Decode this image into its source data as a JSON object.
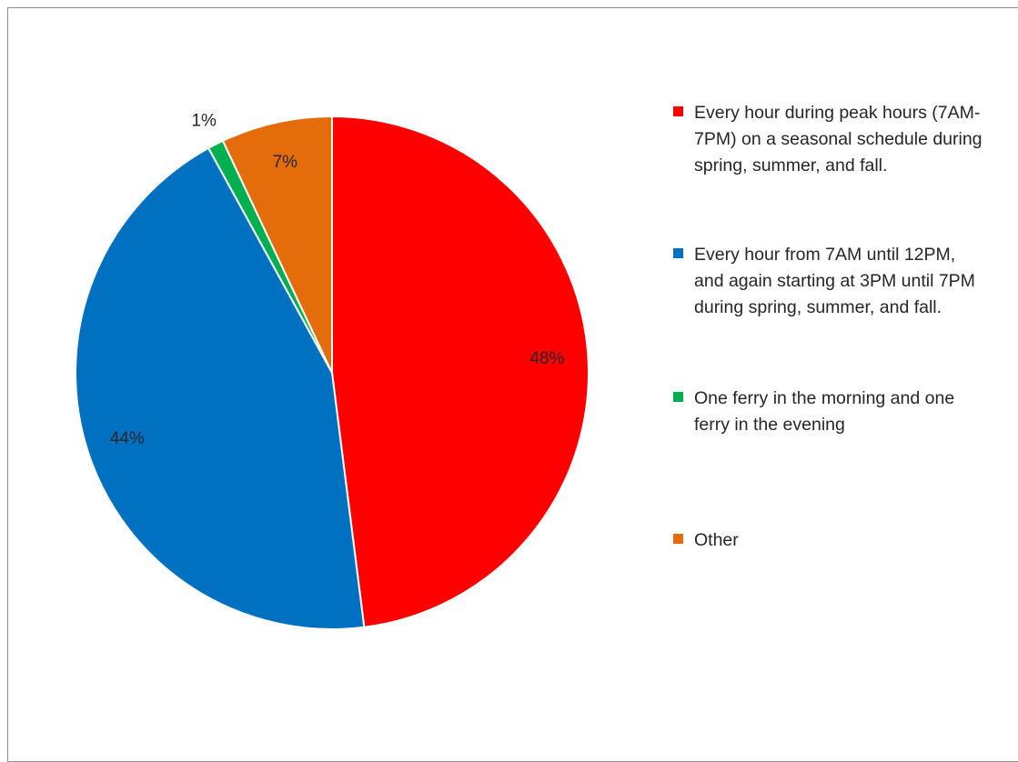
{
  "chart_data": {
    "type": "pie",
    "categories": [
      "Every hour during peak hours (7AM-7PM) on a seasonal schedule during spring, summer, and fall.",
      "Every hour from 7AM until 12PM, and again starting at 3PM until 7PM during spring, summer, and fall.",
      "One ferry in the morning and one ferry in the evening",
      "Other"
    ],
    "values": [
      48,
      44,
      1,
      7
    ],
    "value_labels": [
      "48%",
      "44%",
      "1%",
      "7%"
    ],
    "colors": [
      "#ff0000",
      "#0070c0",
      "#00b050",
      "#e46c0a"
    ]
  }
}
